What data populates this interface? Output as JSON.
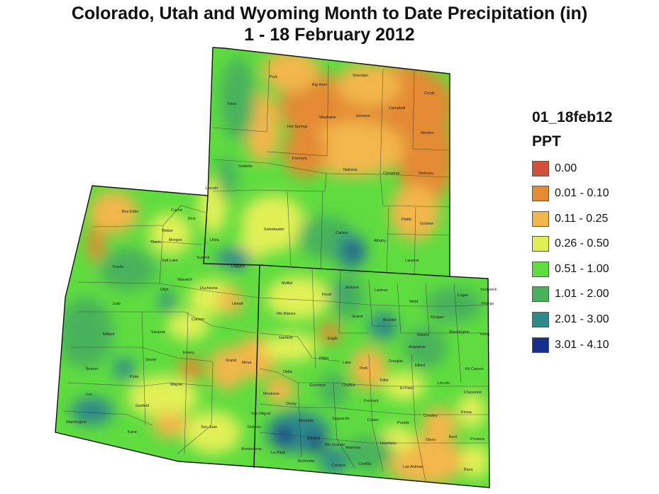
{
  "title_line1": "Colorado, Utah and Wyoming Month to Date Precipitation (in)",
  "title_line2": "1 - 18 February 2012",
  "legend": {
    "name": "01_18feb12",
    "variable": "PPT",
    "classes": [
      {
        "label": "0.00",
        "color": "#d0513a"
      },
      {
        "label": "0.01 - 0.10",
        "color": "#e38a32"
      },
      {
        "label": "0.11 - 0.25",
        "color": "#f2b64b"
      },
      {
        "label": "0.26 - 0.50",
        "color": "#e2f057"
      },
      {
        "label": "0.51 - 1.00",
        "color": "#5fdc3f"
      },
      {
        "label": "1.01 - 2.00",
        "color": "#47b25b"
      },
      {
        "label": "2.01 - 3.00",
        "color": "#2d8a8a"
      },
      {
        "label": "3.01 - 4.10",
        "color": "#152f8c"
      }
    ]
  },
  "counties": {
    "wyoming": [
      "Park",
      "Big Horn",
      "Sheridan",
      "Crook",
      "Teton",
      "Washakie",
      "Johnson",
      "Campbell",
      "Hot Springs",
      "Weston",
      "Fremont",
      "Natrona",
      "Converse",
      "Niobrara",
      "Sublette",
      "Lincoln",
      "Platte",
      "Goshen",
      "Sweetwater",
      "Carbon",
      "Albany",
      "Laramie",
      "Uinta"
    ],
    "utah": [
      "Box Elder",
      "Cache",
      "Rich",
      "Weber",
      "Davis",
      "Morgan",
      "Salt Lake",
      "Summit",
      "Tooele",
      "Daggett",
      "Wasatch",
      "Utah",
      "Duchesne",
      "Juab",
      "Uintah",
      "Carbon",
      "Sanpete",
      "Millard",
      "Emery",
      "Sevier",
      "Grand",
      "Beaver",
      "Piute",
      "Wayne",
      "Iron",
      "Garfield",
      "Washington",
      "Kane",
      "San Juan"
    ],
    "colorado": [
      "Moffat",
      "Jackson",
      "Larimer",
      "Logan",
      "Sedgwick",
      "Routt",
      "Weld",
      "Morgan",
      "Phillips",
      "Rio Blanco",
      "Grand",
      "Boulder",
      "Adams",
      "Washington",
      "Yuma",
      "Garfield",
      "Eagle",
      "Arapahoe",
      "Elbert",
      "Mesa",
      "Pitkin",
      "Lake",
      "Douglas",
      "Kit Carson",
      "Delta",
      "Park",
      "Teller",
      "El Paso",
      "Lincoln",
      "Gunnison",
      "Chaffee",
      "Cheyenne",
      "Montrose",
      "Fremont",
      "Kiowa",
      "Ouray",
      "Crowley",
      "San Miguel",
      "Hinsdale",
      "Saguache",
      "Custer",
      "Pueblo",
      "Otero",
      "Bent",
      "Prowers",
      "Dolores",
      "Mineral",
      "Rio Grande",
      "Alamosa",
      "Huerfano",
      "Montezuma",
      "La Plata",
      "Archuleta",
      "Conejos",
      "Costilla",
      "Las Animas",
      "Baca"
    ]
  }
}
